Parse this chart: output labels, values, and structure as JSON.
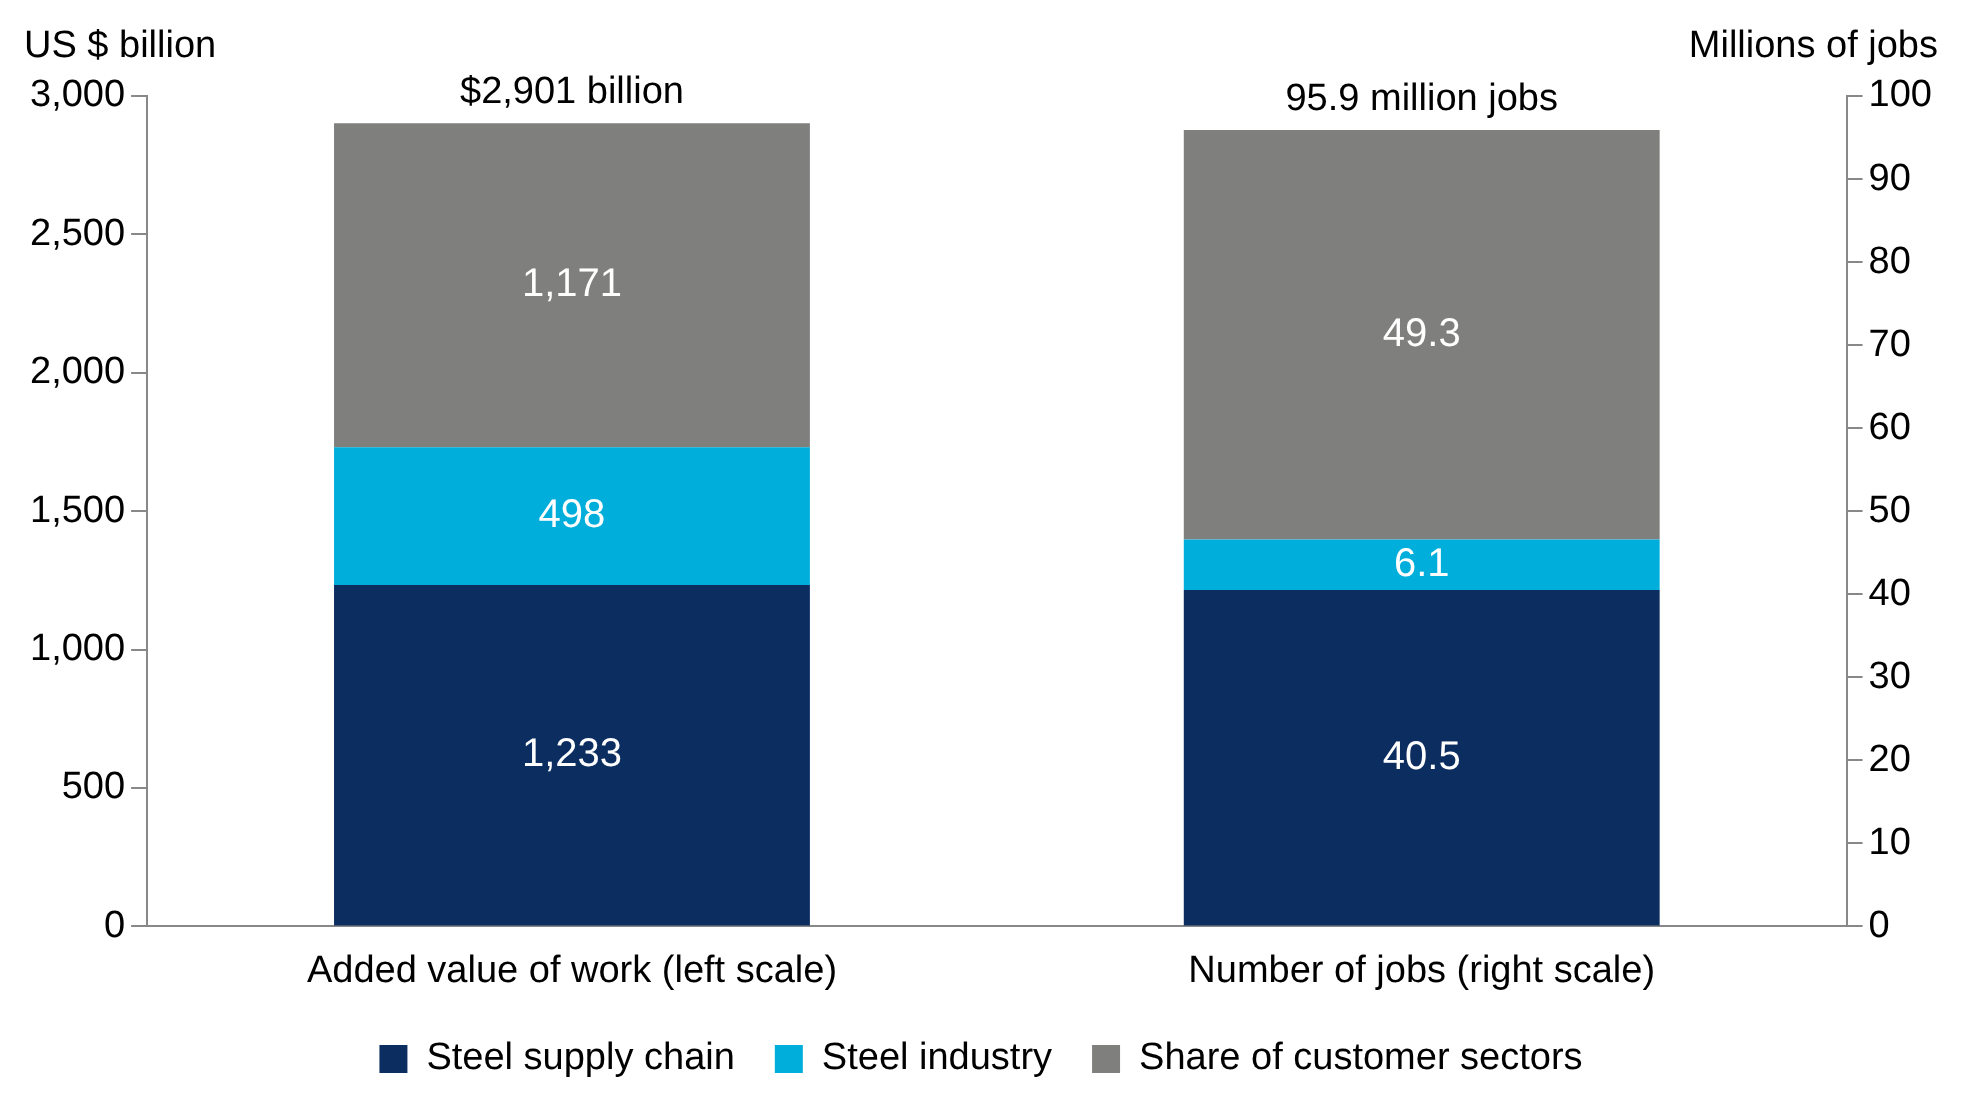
{
  "chart_data": {
    "type": "bar",
    "stacked": true,
    "categories": [
      "Added value of work (left scale)",
      "Number of jobs (right scale)"
    ],
    "ylabel": "US $ billion",
    "y2label": "Millions of jobs",
    "series": [
      {
        "name": "Steel supply chain",
        "color": "#0b2d5f",
        "values": [
          1233,
          null
        ],
        "value_labels": [
          "1,233",
          null
        ]
      },
      {
        "name": "Steel industry",
        "color": "#00aedb",
        "values": [
          498,
          null
        ],
        "value_labels": [
          "498",
          null
        ]
      },
      {
        "name": "Share of customer sectors",
        "color": "#7f7f7d",
        "values": [
          1171,
          null
        ],
        "value_labels": [
          "1,171",
          null
        ]
      },
      {
        "color": "#0b2d5f",
        "axis": "y2",
        "values": [
          null,
          40.5
        ],
        "value_labels": [
          null,
          "40.5"
        ]
      },
      {
        "color": "#00aedb",
        "axis": "y2",
        "values": [
          null,
          6.1
        ],
        "value_labels": [
          null,
          "6.1"
        ]
      },
      {
        "color": "#7f7f7d",
        "axis": "y2",
        "values": [
          null,
          49.3
        ],
        "value_labels": [
          null,
          "49.3"
        ]
      }
    ],
    "annotations": [
      "$2,901 billion",
      "95.9 million jobs"
    ],
    "ylim": [
      0,
      3000
    ],
    "yticks": [
      0,
      500,
      {
        "value": 1000,
        "label": "1,000"
      },
      {
        "value": 1500,
        "label": "1,500"
      },
      {
        "value": 2000,
        "label": "2,000"
      },
      {
        "value": 2500,
        "label": "2,500"
      },
      {
        "value": 3000,
        "label": "3,000"
      }
    ],
    "y2lim": [
      0,
      100
    ],
    "y2ticks": [
      0,
      10,
      20,
      30,
      40,
      50,
      60,
      70,
      80,
      90,
      100
    ],
    "grid": false,
    "legend": "bottom"
  }
}
